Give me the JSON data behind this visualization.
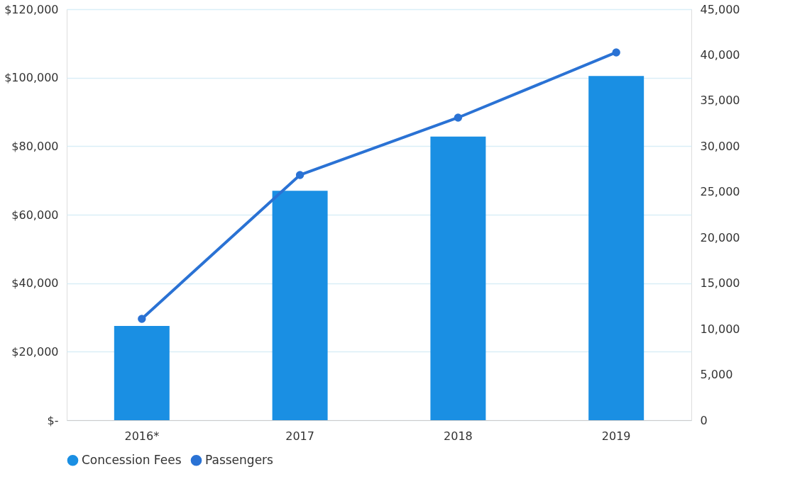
{
  "chart_data": {
    "type": "bar",
    "categories": [
      "2016*",
      "2017",
      "2018",
      "2019"
    ],
    "series": [
      {
        "name": "Concession Fees",
        "color": "#1a8fe3",
        "values": [
          27500,
          67000,
          82800,
          100500
        ]
      },
      {
        "name": "Passengers",
        "color": "#2a72d4",
        "type": "line",
        "axis": "y2",
        "values": [
          11100,
          26850,
          33130,
          40270
        ]
      }
    ],
    "ylim": [
      0,
      120000
    ],
    "yticks": [
      {
        "value": 0,
        "label": "$-"
      },
      {
        "value": 20000,
        "label": "$20,000"
      },
      {
        "value": 40000,
        "label": "$40,000"
      },
      {
        "value": 60000,
        "label": "$60,000"
      },
      {
        "value": 80000,
        "label": "$80,000"
      },
      {
        "value": 100000,
        "label": "$100,000"
      },
      {
        "value": 120000,
        "label": "$120,000"
      }
    ],
    "y2lim": [
      0,
      45000
    ],
    "y2ticks": [
      0,
      {
        "value": 5000,
        "label": "5,000"
      },
      {
        "value": 10000,
        "label": "10,000"
      },
      {
        "value": 15000,
        "label": "15,000"
      },
      {
        "value": 20000,
        "label": "20,000"
      },
      {
        "value": 25000,
        "label": "25,000"
      },
      {
        "value": 30000,
        "label": "30,000"
      },
      {
        "value": 35000,
        "label": "35,000"
      },
      {
        "value": 40000,
        "label": "40,000"
      },
      {
        "value": 45000,
        "label": "45,000"
      }
    ],
    "grid": "y",
    "legend": "bottom",
    "marker": "circle",
    "line_style": "solid"
  }
}
